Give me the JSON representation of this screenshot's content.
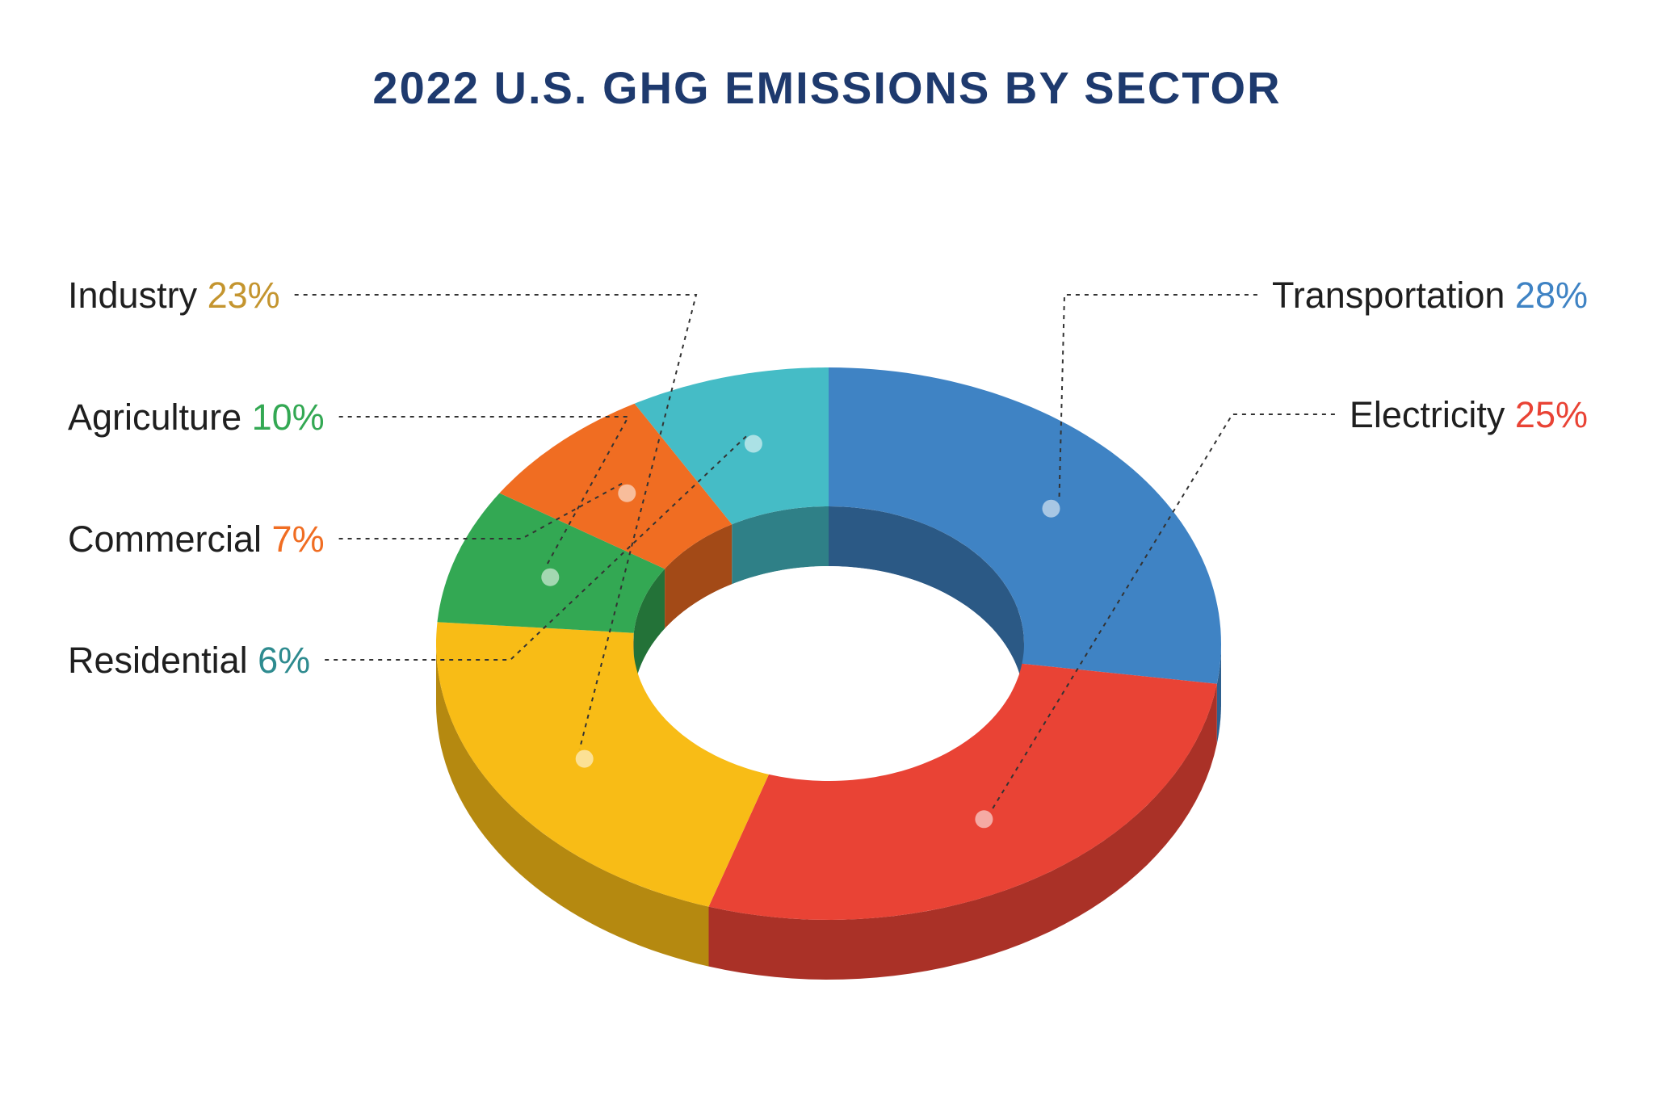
{
  "chart_data": {
    "type": "pie",
    "title": "2022 U.S. GHG EMISSIONS BY SECTOR",
    "slices": [
      {
        "label": "Transportation",
        "value": 28,
        "value_label": "28%",
        "color": "#3f83c4",
        "label_color": "#3f83c4"
      },
      {
        "label": "Electricity",
        "value": 25,
        "value_label": "25%",
        "color": "#e94335",
        "label_color": "#e94335"
      },
      {
        "label": "Industry",
        "value": 23,
        "value_label": "23%",
        "color": "#f8bc16",
        "label_color": "#c4952f"
      },
      {
        "label": "Agriculture",
        "value": 10,
        "value_label": "10%",
        "color": "#33a853",
        "label_color": "#33a853"
      },
      {
        "label": "Commercial",
        "value": 7,
        "value_label": "7%",
        "color": "#f06d22",
        "label_color": "#f06d22"
      },
      {
        "label": "Residential",
        "value": 6,
        "value_label": "6%",
        "color": "#45bcc6",
        "label_color": "#2e8b8f"
      }
    ]
  }
}
